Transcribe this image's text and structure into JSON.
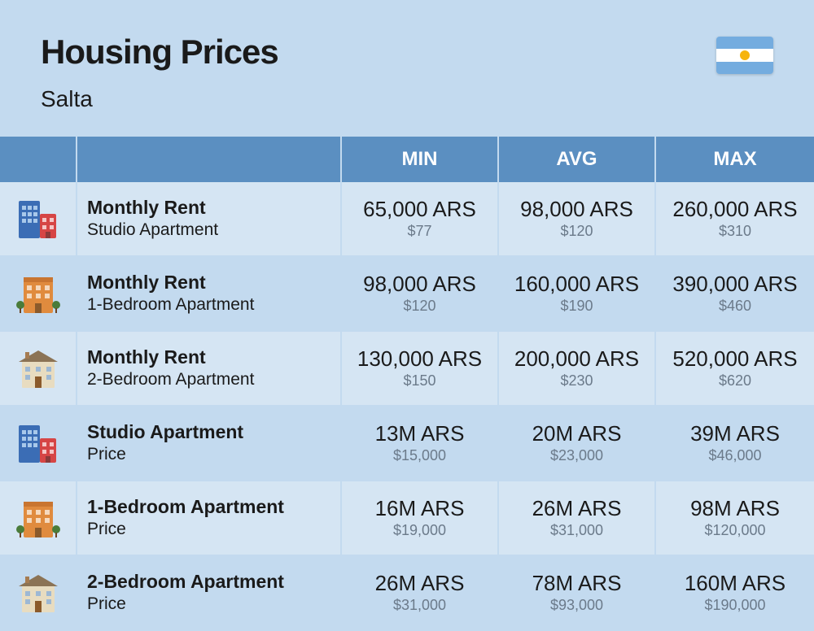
{
  "header": {
    "title": "Housing Prices",
    "location": "Salta",
    "flag_colors": {
      "blue": "#74acdf",
      "white": "#ffffff",
      "sun": "#f6b40e"
    }
  },
  "table": {
    "columns": [
      "MIN",
      "AVG",
      "MAX"
    ],
    "header_bg": "#5b8fc1",
    "header_text_color": "#ffffff",
    "row_bg_odd": "#d5e5f3",
    "row_bg_even": "#c3daef",
    "value_color": "#1a1a1a",
    "subvalue_color": "#6b7a8a",
    "rows": [
      {
        "icon": "buildings-tall",
        "title": "Monthly Rent",
        "subtitle": "Studio Apartment",
        "min": {
          "main": "65,000 ARS",
          "sub": "$77"
        },
        "avg": {
          "main": "98,000 ARS",
          "sub": "$120"
        },
        "max": {
          "main": "260,000 ARS",
          "sub": "$310"
        }
      },
      {
        "icon": "building-orange",
        "title": "Monthly Rent",
        "subtitle": "1-Bedroom Apartment",
        "min": {
          "main": "98,000 ARS",
          "sub": "$120"
        },
        "avg": {
          "main": "160,000 ARS",
          "sub": "$190"
        },
        "max": {
          "main": "390,000 ARS",
          "sub": "$460"
        }
      },
      {
        "icon": "house-beige",
        "title": "Monthly Rent",
        "subtitle": "2-Bedroom Apartment",
        "min": {
          "main": "130,000 ARS",
          "sub": "$150"
        },
        "avg": {
          "main": "200,000 ARS",
          "sub": "$230"
        },
        "max": {
          "main": "520,000 ARS",
          "sub": "$620"
        }
      },
      {
        "icon": "buildings-tall",
        "title": "Studio Apartment",
        "subtitle": "Price",
        "min": {
          "main": "13M ARS",
          "sub": "$15,000"
        },
        "avg": {
          "main": "20M ARS",
          "sub": "$23,000"
        },
        "max": {
          "main": "39M ARS",
          "sub": "$46,000"
        }
      },
      {
        "icon": "building-orange",
        "title": "1-Bedroom Apartment",
        "subtitle": "Price",
        "min": {
          "main": "16M ARS",
          "sub": "$19,000"
        },
        "avg": {
          "main": "26M ARS",
          "sub": "$31,000"
        },
        "max": {
          "main": "98M ARS",
          "sub": "$120,000"
        }
      },
      {
        "icon": "house-beige",
        "title": "2-Bedroom Apartment",
        "subtitle": "Price",
        "min": {
          "main": "26M ARS",
          "sub": "$31,000"
        },
        "avg": {
          "main": "78M ARS",
          "sub": "$93,000"
        },
        "max": {
          "main": "160M ARS",
          "sub": "$190,000"
        }
      }
    ]
  },
  "page_bg": "#c3daef"
}
